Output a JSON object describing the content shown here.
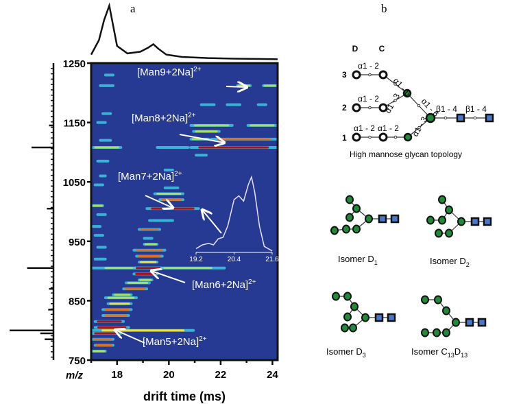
{
  "panel_labels": {
    "a": "a",
    "b": "b"
  },
  "chart_data": {
    "type": "heatmap",
    "xlabel": "drift time (ms)",
    "ylabel": "m/z",
    "xlim": [
      17.0,
      24.2
    ],
    "ylim": [
      750,
      1250
    ],
    "xticks": [
      "18",
      "20",
      "22",
      "24"
    ],
    "yticks": [
      "750",
      "850",
      "950",
      "1050",
      "1150",
      "1250"
    ],
    "colors": {
      "background": "#263a93",
      "low": "#3ec8e0",
      "mid": "#a8e060",
      "high": "#f0e040",
      "higher": "#e07020",
      "max": "#b01010"
    },
    "streaks": [
      [
        1212,
        22.6,
        23.2,
        0.5
      ],
      [
        1212,
        23.6,
        24.2,
        0.45
      ],
      [
        1212,
        17.3,
        17.9,
        0.35
      ],
      [
        1180,
        21.2,
        21.8,
        0.3
      ],
      [
        1180,
        22.2,
        22.8,
        0.3
      ],
      [
        1180,
        23.4,
        23.8,
        0.3
      ],
      [
        1145,
        20.8,
        22.5,
        0.6
      ],
      [
        1145,
        23.0,
        24.2,
        0.55
      ],
      [
        1135,
        20.9,
        22.0,
        0.45
      ],
      [
        1122,
        20.8,
        21.6,
        0.5
      ],
      [
        1122,
        21.6,
        24.2,
        0.9
      ],
      [
        1108,
        17.0,
        18.2,
        0.6
      ],
      [
        1108,
        19.5,
        20.8,
        0.4
      ],
      [
        1108,
        20.8,
        24.2,
        0.95
      ],
      [
        1095,
        21.0,
        21.5,
        0.35
      ],
      [
        1070,
        19.8,
        20.2,
        0.3
      ],
      [
        1040,
        19.8,
        20.4,
        0.4
      ],
      [
        1030,
        19.4,
        20.6,
        0.6
      ],
      [
        1020,
        19.6,
        20.6,
        0.8
      ],
      [
        1005,
        19.1,
        21.2,
        0.95
      ],
      [
        985,
        19.2,
        20.2,
        0.4
      ],
      [
        970,
        18.8,
        19.7,
        0.85
      ],
      [
        955,
        19.0,
        19.4,
        0.35
      ],
      [
        945,
        19.0,
        19.6,
        0.5
      ],
      [
        935,
        18.6,
        19.9,
        0.9
      ],
      [
        925,
        18.7,
        19.8,
        0.8
      ],
      [
        915,
        18.8,
        19.6,
        0.7
      ],
      [
        905,
        17.0,
        22.2,
        0.55
      ],
      [
        905,
        18.6,
        19.8,
        0.95
      ],
      [
        895,
        18.6,
        19.6,
        0.95
      ],
      [
        885,
        18.8,
        19.4,
        0.5
      ],
      [
        880,
        18.3,
        19.3,
        0.6
      ],
      [
        870,
        18.2,
        19.2,
        0.85
      ],
      [
        860,
        17.8,
        18.6,
        0.5
      ],
      [
        855,
        17.5,
        18.8,
        0.6
      ],
      [
        845,
        17.6,
        18.6,
        0.7
      ],
      [
        835,
        17.4,
        18.6,
        0.9
      ],
      [
        825,
        17.4,
        18.5,
        0.9
      ],
      [
        815,
        17.1,
        18.3,
        0.95
      ],
      [
        805,
        17.1,
        18.5,
        1.0
      ],
      [
        800,
        17.0,
        21.0,
        0.65
      ],
      [
        795,
        17.0,
        18.2,
        1.0
      ],
      [
        785,
        17.0,
        17.9,
        0.9
      ],
      [
        775,
        17.1,
        17.9,
        0.8
      ],
      [
        765,
        17.0,
        17.6,
        0.6
      ],
      [
        1230,
        17.5,
        17.9,
        0.3
      ],
      [
        1165,
        17.4,
        17.8,
        0.3
      ],
      [
        1150,
        17.2,
        17.6,
        0.35
      ],
      [
        1120,
        17.3,
        17.8,
        0.4
      ],
      [
        1085,
        17.2,
        17.7,
        0.35
      ],
      [
        1060,
        17.3,
        17.6,
        0.3
      ],
      [
        1045,
        17.1,
        17.5,
        0.35
      ],
      [
        1010,
        17.0,
        17.5,
        0.5
      ],
      [
        995,
        17.2,
        17.6,
        0.3
      ],
      [
        975,
        17.0,
        17.4,
        0.35
      ],
      [
        960,
        17.1,
        17.5,
        0.3
      ],
      [
        940,
        17.2,
        17.6,
        0.35
      ],
      [
        920,
        17.1,
        17.6,
        0.4
      ]
    ],
    "annotations": [
      {
        "text": "[Man9+2Na]",
        "charge": "2+"
      },
      {
        "text": "[Man8+2Na]",
        "charge": "2+"
      },
      {
        "text": "[Man7+2Na]",
        "charge": "2+"
      },
      {
        "text": "[Man6+2Na]",
        "charge": "2+"
      },
      {
        "text": "[Man5+2Na]",
        "charge": "2+"
      }
    ],
    "top_projection": [
      [
        17.0,
        0.1
      ],
      [
        17.3,
        0.35
      ],
      [
        17.5,
        0.7
      ],
      [
        17.7,
        0.95
      ],
      [
        17.85,
        0.6
      ],
      [
        18.0,
        0.25
      ],
      [
        18.4,
        0.12
      ],
      [
        18.9,
        0.15
      ],
      [
        19.2,
        0.22
      ],
      [
        19.4,
        0.28
      ],
      [
        19.6,
        0.2
      ],
      [
        19.9,
        0.1
      ],
      [
        20.5,
        0.06
      ],
      [
        21.5,
        0.04
      ],
      [
        22.5,
        0.03
      ],
      [
        24.2,
        0.02
      ]
    ],
    "left_projection": [
      [
        800,
        1.0
      ],
      [
        905,
        0.6
      ],
      [
        1108,
        0.5
      ],
      [
        795,
        0.3
      ],
      [
        785,
        0.2
      ],
      [
        1005,
        0.15
      ],
      [
        870,
        0.1
      ],
      [
        835,
        0.12
      ],
      [
        1145,
        0.1
      ]
    ],
    "inset": {
      "xticks": [
        "19.2",
        "20.4",
        "21.6"
      ],
      "xlim": [
        19.2,
        21.6
      ],
      "trace": [
        [
          19.2,
          0.05
        ],
        [
          19.4,
          0.1
        ],
        [
          19.6,
          0.12
        ],
        [
          19.75,
          0.1
        ],
        [
          19.9,
          0.18
        ],
        [
          20.05,
          0.2
        ],
        [
          20.2,
          0.35
        ],
        [
          20.4,
          0.7
        ],
        [
          20.55,
          0.75
        ],
        [
          20.7,
          0.68
        ],
        [
          20.85,
          0.9
        ],
        [
          20.95,
          1.0
        ],
        [
          21.05,
          0.8
        ],
        [
          21.2,
          0.35
        ],
        [
          21.35,
          0.08
        ],
        [
          21.6,
          0.02
        ]
      ]
    }
  },
  "topology": {
    "col_labels": [
      "D",
      "C"
    ],
    "row_labels": [
      "3",
      "2",
      "1"
    ],
    "linkages": [
      "α1 - 2",
      "α1 - 2",
      "α1 - 2",
      "α1 - 2",
      "α1 - 6",
      "α1 - 3",
      "α1 - 6",
      "α1 - 3",
      "β1 - 4",
      "β1 - 4"
    ],
    "caption": "High mannose glycan topology"
  },
  "isomers": [
    {
      "name": "Isomer D",
      "sub": "1"
    },
    {
      "name": "Isomer D",
      "sub": "2"
    },
    {
      "name": "Isomer D",
      "sub": "3"
    },
    {
      "name": "Isomer C",
      "sub": "13",
      "name2": "D",
      "sub2": "13"
    }
  ],
  "glycan_colors": {
    "mannose": "#1f8a3a",
    "glcnac": "#4a78c8"
  }
}
